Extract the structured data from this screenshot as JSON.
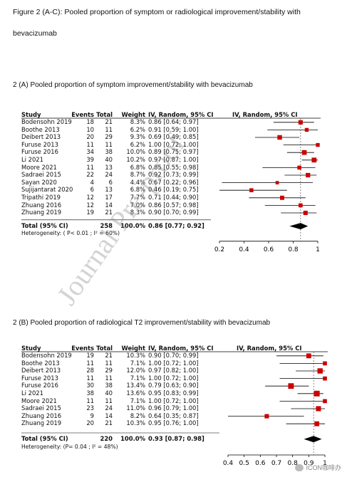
{
  "figure_caption_line1": "Figure 2 (A-C): Pooled proportion of symptom or radiological improvement/stability with",
  "figure_caption_line2": "bevacizumab",
  "watermark": "Journal Pre-proof",
  "wechat_label": "ICON咖啡办",
  "chart_data": [
    {
      "type": "forest",
      "heading": "2 (A) Pooled proportion of symptom improvement/stability with bevacizumab",
      "columns": {
        "study": "Study",
        "events": "Events",
        "total": "Total",
        "weight": "Weight",
        "ci": "IV, Random, 95% CI",
        "plot": "IV, Random, 95% CI"
      },
      "studies": [
        {
          "study": "Bodensohn 2019",
          "events": "18",
          "total": "21",
          "weight": "8.3%",
          "ci": "0.86 [0.64; 0.97]",
          "est": 0.86,
          "lo": 0.64,
          "hi": 0.97,
          "w": 8.3
        },
        {
          "study": "Boothe 2013",
          "events": "10",
          "total": "11",
          "weight": "6.2%",
          "ci": "0.91 [0.59; 1.00]",
          "est": 0.91,
          "lo": 0.59,
          "hi": 1.0,
          "w": 6.2
        },
        {
          "study": "Deibert 2013",
          "events": "20",
          "total": "29",
          "weight": "9.3%",
          "ci": "0.69 [0.49; 0.85]",
          "est": 0.69,
          "lo": 0.49,
          "hi": 0.85,
          "w": 9.3
        },
        {
          "study": "Furuse 2013",
          "events": "11",
          "total": "11",
          "weight": "6.2%",
          "ci": "1.00 [0.72; 1.00]",
          "est": 1.0,
          "lo": 0.72,
          "hi": 1.0,
          "w": 6.2
        },
        {
          "study": "Furuse 2016",
          "events": "34",
          "total": "38",
          "weight": "10.0%",
          "ci": "0.89 [0.75; 0.97]",
          "est": 0.89,
          "lo": 0.75,
          "hi": 0.97,
          "w": 10.0
        },
        {
          "study": "Li  2021",
          "events": "39",
          "total": "40",
          "weight": "10.2%",
          "ci": "0.97 [0.87; 1.00]",
          "est": 0.97,
          "lo": 0.87,
          "hi": 1.0,
          "w": 10.2
        },
        {
          "study": "Moore 2021",
          "events": "11",
          "total": "13",
          "weight": "6.8%",
          "ci": "0.85 [0.55; 0.98]",
          "est": 0.85,
          "lo": 0.55,
          "hi": 0.98,
          "w": 6.8
        },
        {
          "study": "Sadraei 2015",
          "events": "22",
          "total": "24",
          "weight": "8.7%",
          "ci": "0.92 [0.73; 0.99]",
          "est": 0.92,
          "lo": 0.73,
          "hi": 0.99,
          "w": 8.7
        },
        {
          "study": "Sayan 2020",
          "events": "4",
          "total": "6",
          "weight": "4.4%",
          "ci": "0.67 [0.22; 0.96]",
          "est": 0.67,
          "lo": 0.22,
          "hi": 0.96,
          "w": 4.4
        },
        {
          "study": "Sujijantarat 2020",
          "events": "6",
          "total": "13",
          "weight": "6.8%",
          "ci": "0.46 [0.19; 0.75]",
          "est": 0.46,
          "lo": 0.19,
          "hi": 0.75,
          "w": 6.8
        },
        {
          "study": "Tripathi 2019",
          "events": "12",
          "total": "17",
          "weight": "7.7%",
          "ci": "0.71 [0.44; 0.90]",
          "est": 0.71,
          "lo": 0.44,
          "hi": 0.9,
          "w": 7.7
        },
        {
          "study": "Zhuang 2016",
          "events": "12",
          "total": "14",
          "weight": "7.0%",
          "ci": "0.86 [0.57; 0.98]",
          "est": 0.86,
          "lo": 0.57,
          "hi": 0.98,
          "w": 7.0
        },
        {
          "study": "Zhuang 2019",
          "events": "19",
          "total": "21",
          "weight": "8.3%",
          "ci": "0.90 [0.70; 0.99]",
          "est": 0.9,
          "lo": 0.7,
          "hi": 0.99,
          "w": 8.3
        }
      ],
      "pooled": {
        "study": "Total (95% CI)",
        "total": "258",
        "weight": "100.0%",
        "ci": "0.86 [0.77; 0.92]",
        "est": 0.86,
        "lo": 0.77,
        "hi": 0.92
      },
      "heterogeneity": "Heterogeneity:  ( P< 0.01 ; I² = 60%)",
      "xlim": [
        0.2,
        1.0
      ],
      "ticks": [
        0.2,
        0.4,
        0.6,
        0.8,
        1
      ],
      "tick_labels": [
        "0.2",
        "0.4",
        "0.6",
        "0.8",
        "1"
      ]
    },
    {
      "type": "forest",
      "heading": "2 (B) Pooled proportion of radiological T2 improvement/stability with bevacizumab",
      "columns": {
        "study": "Study",
        "events": "Events",
        "total": "Total",
        "weight": "Weight",
        "ci": "IV, Random, 95% CI",
        "plot": "IV, Random, 95% CI"
      },
      "studies": [
        {
          "study": "Bodensohn 2019",
          "events": "19",
          "total": "21",
          "weight": "10.3%",
          "ci": "0.90 [0.70; 0.99]",
          "est": 0.9,
          "lo": 0.7,
          "hi": 0.99,
          "w": 10.3
        },
        {
          "study": "Boothe 2013",
          "events": "11",
          "total": "11",
          "weight": "7.1%",
          "ci": "1.00 [0.72; 1.00]",
          "est": 1.0,
          "lo": 0.72,
          "hi": 1.0,
          "w": 7.1
        },
        {
          "study": "Deibert 2013",
          "events": "28",
          "total": "29",
          "weight": "12.0%",
          "ci": "0.97 [0.82; 1.00]",
          "est": 0.97,
          "lo": 0.82,
          "hi": 1.0,
          "w": 12.0
        },
        {
          "study": "Furuse 2013",
          "events": "11",
          "total": "11",
          "weight": "7.1%",
          "ci": "1.00 [0.72; 1.00]",
          "est": 1.0,
          "lo": 0.72,
          "hi": 1.0,
          "w": 7.1
        },
        {
          "study": "Furuse 2016",
          "events": "30",
          "total": "38",
          "weight": "13.4%",
          "ci": "0.79 [0.63; 0.90]",
          "est": 0.79,
          "lo": 0.63,
          "hi": 0.9,
          "w": 13.4
        },
        {
          "study": "Li  2021",
          "events": "38",
          "total": "40",
          "weight": "13.6%",
          "ci": "0.95 [0.83; 0.99]",
          "est": 0.95,
          "lo": 0.83,
          "hi": 0.99,
          "w": 13.6
        },
        {
          "study": "Moore 2021",
          "events": "11",
          "total": "11",
          "weight": "7.1%",
          "ci": "1.00 [0.72; 1.00]",
          "est": 1.0,
          "lo": 0.72,
          "hi": 1.0,
          "w": 7.1
        },
        {
          "study": "Sadraei 2015",
          "events": "23",
          "total": "24",
          "weight": "11.0%",
          "ci": "0.96 [0.79; 1.00]",
          "est": 0.96,
          "lo": 0.79,
          "hi": 1.0,
          "w": 11.0
        },
        {
          "study": "Zhuang 2016",
          "events": "9",
          "total": "14",
          "weight": "8.2%",
          "ci": "0.64 [0.35; 0.87]",
          "est": 0.64,
          "lo": 0.35,
          "hi": 0.87,
          "w": 8.2
        },
        {
          "study": "Zhuang 2019",
          "events": "20",
          "total": "21",
          "weight": "10.3%",
          "ci": "0.95 [0.76; 1.00]",
          "est": 0.95,
          "lo": 0.76,
          "hi": 1.0,
          "w": 10.3
        }
      ],
      "pooled": {
        "study": "Total (95% CI)",
        "total": "220",
        "weight": "100.0%",
        "ci": "0.93 [0.87; 0.98]",
        "est": 0.93,
        "lo": 0.87,
        "hi": 0.98
      },
      "heterogeneity": "Heterogeneity:  (P= 0.04 ; I² = 48%)",
      "xlim": [
        0.4,
        1.0
      ],
      "ticks": [
        0.4,
        0.5,
        0.6,
        0.7,
        0.8,
        0.9,
        1
      ],
      "tick_labels": [
        "0.4",
        "0.5",
        "0.6",
        "0.7",
        "0.8",
        "0.9",
        "1"
      ]
    }
  ],
  "colors": {
    "marker": "#cc0000",
    "ci_line": "#000000",
    "diamond": "#000000",
    "grid": "#999999"
  }
}
